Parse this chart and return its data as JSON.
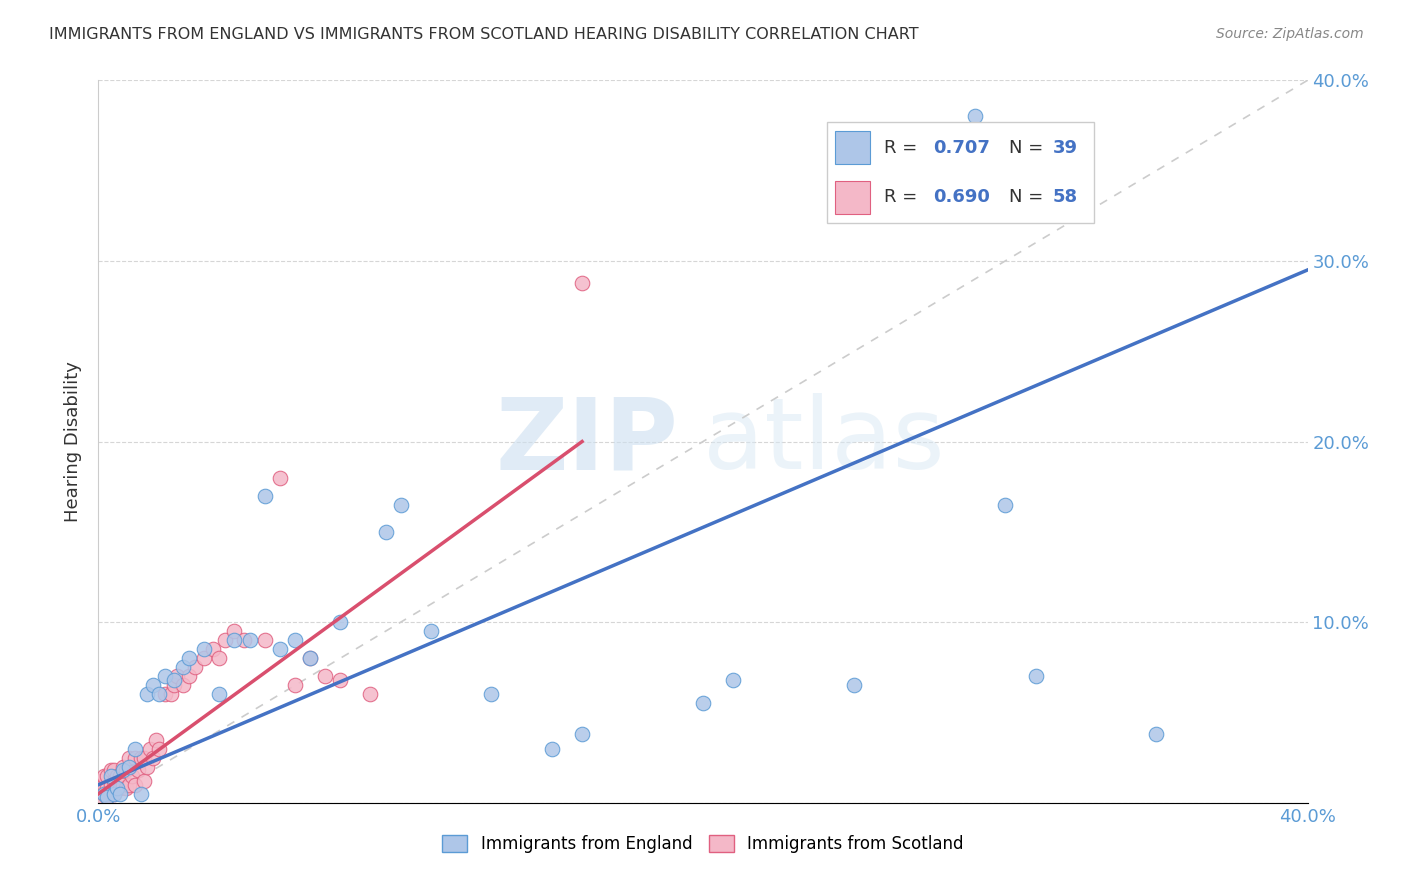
{
  "title": "IMMIGRANTS FROM ENGLAND VS IMMIGRANTS FROM SCOTLAND HEARING DISABILITY CORRELATION CHART",
  "source": "Source: ZipAtlas.com",
  "ylabel": "Hearing Disability",
  "xlim": [
    0,
    0.4
  ],
  "ylim": [
    0,
    0.4
  ],
  "england_color": "#aec6e8",
  "england_edge_color": "#5b9bd5",
  "scotland_color": "#f4b8c8",
  "scotland_edge_color": "#e06080",
  "england_R": 0.707,
  "england_N": 39,
  "scotland_R": 0.69,
  "scotland_N": 58,
  "england_line_color": "#4472c4",
  "scotland_line_color": "#d94f6e",
  "diagonal_color": "#cccccc",
  "watermark_zip": "ZIP",
  "watermark_atlas": "atlas",
  "england_x": [
    0.002,
    0.003,
    0.004,
    0.005,
    0.006,
    0.007,
    0.008,
    0.01,
    0.012,
    0.014,
    0.016,
    0.018,
    0.02,
    0.022,
    0.025,
    0.028,
    0.03,
    0.035,
    0.04,
    0.045,
    0.05,
    0.055,
    0.06,
    0.065,
    0.07,
    0.08,
    0.095,
    0.1,
    0.11,
    0.13,
    0.15,
    0.16,
    0.2,
    0.21,
    0.25,
    0.29,
    0.3,
    0.31,
    0.35
  ],
  "england_y": [
    0.005,
    0.003,
    0.015,
    0.005,
    0.008,
    0.005,
    0.018,
    0.02,
    0.03,
    0.005,
    0.06,
    0.065,
    0.06,
    0.07,
    0.068,
    0.075,
    0.08,
    0.085,
    0.06,
    0.09,
    0.09,
    0.17,
    0.085,
    0.09,
    0.08,
    0.1,
    0.15,
    0.165,
    0.095,
    0.06,
    0.03,
    0.038,
    0.055,
    0.068,
    0.065,
    0.38,
    0.165,
    0.07,
    0.038
  ],
  "scotland_x": [
    0.001,
    0.001,
    0.001,
    0.002,
    0.002,
    0.002,
    0.003,
    0.003,
    0.003,
    0.004,
    0.004,
    0.004,
    0.005,
    0.005,
    0.005,
    0.006,
    0.006,
    0.007,
    0.007,
    0.008,
    0.008,
    0.009,
    0.009,
    0.01,
    0.01,
    0.011,
    0.012,
    0.012,
    0.013,
    0.014,
    0.015,
    0.015,
    0.016,
    0.017,
    0.018,
    0.019,
    0.02,
    0.022,
    0.024,
    0.025,
    0.026,
    0.028,
    0.03,
    0.032,
    0.035,
    0.038,
    0.04,
    0.042,
    0.045,
    0.048,
    0.055,
    0.06,
    0.065,
    0.07,
    0.075,
    0.08,
    0.09,
    0.16
  ],
  "scotland_y": [
    0.003,
    0.008,
    0.012,
    0.005,
    0.01,
    0.015,
    0.003,
    0.008,
    0.015,
    0.005,
    0.01,
    0.018,
    0.005,
    0.012,
    0.018,
    0.008,
    0.015,
    0.008,
    0.015,
    0.01,
    0.02,
    0.008,
    0.018,
    0.01,
    0.025,
    0.015,
    0.01,
    0.025,
    0.018,
    0.025,
    0.012,
    0.025,
    0.02,
    0.03,
    0.025,
    0.035,
    0.03,
    0.06,
    0.06,
    0.065,
    0.07,
    0.065,
    0.07,
    0.075,
    0.08,
    0.085,
    0.08,
    0.09,
    0.095,
    0.09,
    0.09,
    0.18,
    0.065,
    0.08,
    0.07,
    0.068,
    0.06,
    0.288
  ],
  "legend_label_england": "Immigrants from England",
  "legend_label_scotland": "Immigrants from Scotland",
  "eng_line_x0": 0.0,
  "eng_line_y0": 0.01,
  "eng_line_x1": 0.4,
  "eng_line_y1": 0.295,
  "sco_line_x0": 0.0,
  "sco_line_y0": 0.005,
  "sco_line_x1": 0.16,
  "sco_line_y1": 0.2
}
